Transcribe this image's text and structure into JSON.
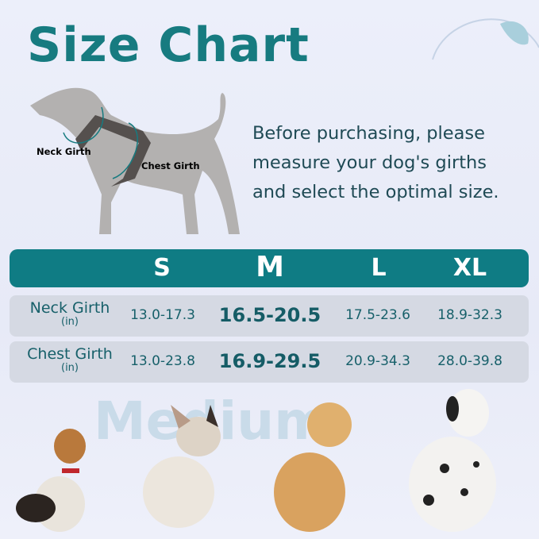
{
  "title": "Size Chart",
  "intro": [
    "Before purchasing, please",
    "measure your dog's girths",
    "and select the optimal size."
  ],
  "diagram": {
    "neck_label": "Neck Girth",
    "chest_label": "Chest Girth"
  },
  "table": {
    "sizes": [
      "S",
      "M",
      "L",
      "XL"
    ],
    "highlighted_size": "M",
    "rows": [
      {
        "label": "Neck Girth",
        "unit": "(in)",
        "values": [
          "13.0-17.3",
          "16.5-20.5",
          "17.5-23.6",
          "18.9-32.3"
        ]
      },
      {
        "label": "Chest Girth",
        "unit": "(in)",
        "values": [
          "13.0-23.8",
          "16.9-29.5",
          "20.9-34.3",
          "28.0-39.8"
        ]
      }
    ]
  },
  "watermark": "Medium",
  "dogs": [
    "beagle",
    "french-bulldog",
    "golden-retriever",
    "dalmatian"
  ],
  "colors": {
    "accent": "#0f7c84",
    "row_bg": "#d5d9e3",
    "text": "#17606a"
  }
}
